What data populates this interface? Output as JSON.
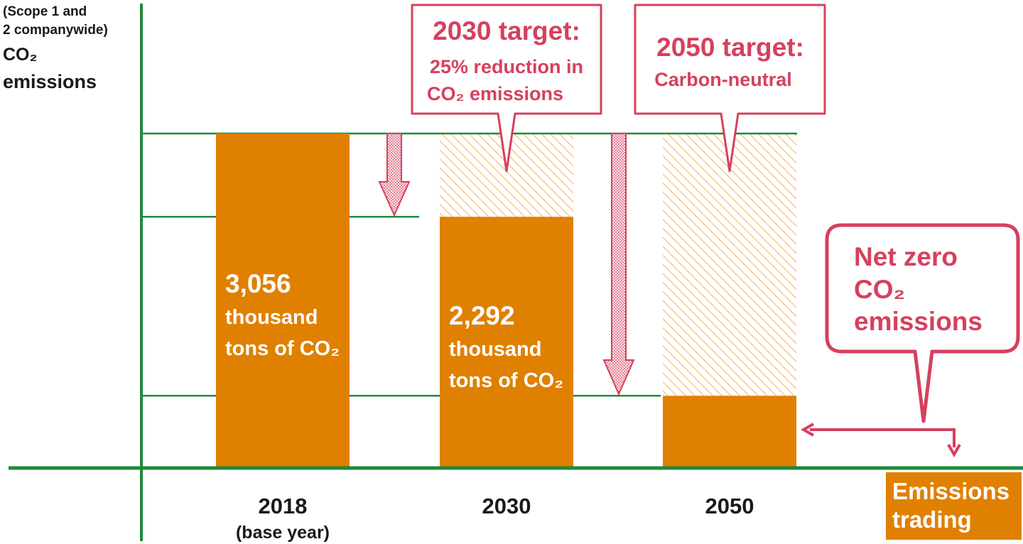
{
  "colors": {
    "axis": "#1e8a3a",
    "bar": "#e08000",
    "callout": "#d6405e",
    "white": "#ffffff",
    "text": "#1a1a1a"
  },
  "chart_data": {
    "type": "bar",
    "title": "",
    "ylabel_lines": [
      "(Scope 1 and",
      "2 companywide)",
      "CO₂",
      "emissions"
    ],
    "categories": [
      "2018",
      "2030",
      "2050"
    ],
    "category_sublabels": [
      "(base year)",
      "",
      ""
    ],
    "values": [
      3056,
      2292,
      650
    ],
    "reduction_hatch_top": [
      3056,
      3056,
      3056
    ],
    "unit": "thousand tons of CO₂",
    "ylim": [
      0,
      3056
    ],
    "grid_levels": [
      3056,
      2292,
      650
    ],
    "bar_labels": [
      [
        "3,056",
        "thousand",
        "tons of CO₂"
      ],
      [
        "2,292",
        "thousand",
        "tons of CO₂"
      ],
      []
    ],
    "callouts": [
      {
        "id": "target-2030",
        "title": "2030 target:",
        "lines": [
          "25% reduction in",
          "CO₂ emissions"
        ]
      },
      {
        "id": "target-2050",
        "title": "2050 target:",
        "lines": [
          "Carbon-neutral"
        ]
      },
      {
        "id": "net-zero",
        "title": "",
        "lines": [
          "Net zero",
          "CO₂",
          "emissions"
        ]
      }
    ],
    "emissions_trading_label": [
      "Emissions",
      "trading"
    ]
  }
}
